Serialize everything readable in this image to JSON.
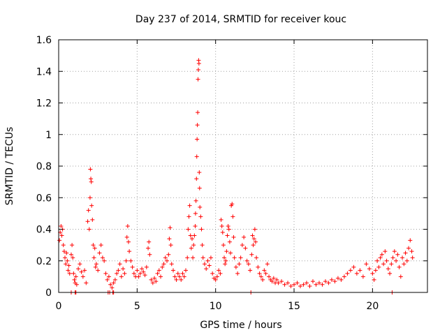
{
  "chart_data": {
    "type": "scatter",
    "title": "Day 237 of 2014, SRMTID for receiver kouc",
    "xlabel": "GPS time / hours",
    "ylabel": "SRMTID / TECUs",
    "xlim": [
      0,
      23.5
    ],
    "ylim": [
      0,
      1.6
    ],
    "x_ticks": [
      0,
      5,
      10,
      15,
      20
    ],
    "x_tick_labels": [
      "0",
      "5",
      "10",
      "15",
      "20"
    ],
    "y_ticks": [
      0,
      0.2,
      0.4,
      0.6,
      0.8,
      1.0,
      1.2,
      1.4,
      1.6
    ],
    "y_tick_labels": [
      "0",
      "0.2",
      "0.4",
      "0.6",
      "0.8",
      "1",
      "1.2",
      "1.4",
      "1.6"
    ],
    "grid": true,
    "marker": "+",
    "colors": {
      "series": "#ff0000",
      "grid": "#a0a0a0",
      "axis": "#000000"
    },
    "series": [
      {
        "name": "SRMTID",
        "points": [
          [
            0.05,
            0.33
          ],
          [
            0.1,
            0.38
          ],
          [
            0.15,
            0.42
          ],
          [
            0.2,
            0.36
          ],
          [
            0.25,
            0.4
          ],
          [
            0.3,
            0.3
          ],
          [
            0.35,
            0.26
          ],
          [
            0.4,
            0.22
          ],
          [
            0.45,
            0.18
          ],
          [
            0.5,
            0.25
          ],
          [
            0.55,
            0.2
          ],
          [
            0.6,
            0.14
          ],
          [
            0.65,
            0.17
          ],
          [
            0.7,
            0.12
          ],
          [
            0.8,
            0.24
          ],
          [
            0.85,
            0.3
          ],
          [
            0.9,
            0.22
          ],
          [
            0.95,
            0.12
          ],
          [
            1.0,
            0.08
          ],
          [
            1.05,
            0.06
          ],
          [
            1.1,
            0.1
          ],
          [
            1.15,
            0.05
          ],
          [
            1.25,
            0.15
          ],
          [
            1.35,
            0.18
          ],
          [
            1.45,
            0.13
          ],
          [
            1.55,
            0.1
          ],
          [
            1.65,
            0.14
          ],
          [
            1.75,
            0.06
          ],
          [
            1.85,
            0.45
          ],
          [
            1.9,
            0.52
          ],
          [
            1.95,
            0.4
          ],
          [
            2.0,
            0.6
          ],
          [
            2.02,
            0.78
          ],
          [
            2.05,
            0.72
          ],
          [
            2.08,
            0.7
          ],
          [
            2.1,
            0.55
          ],
          [
            2.15,
            0.46
          ],
          [
            2.2,
            0.3
          ],
          [
            2.25,
            0.22
          ],
          [
            2.3,
            0.28
          ],
          [
            2.35,
            0.16
          ],
          [
            2.4,
            0.18
          ],
          [
            2.5,
            0.14
          ],
          [
            2.6,
            0.25
          ],
          [
            2.7,
            0.3
          ],
          [
            2.8,
            0.22
          ],
          [
            2.9,
            0.2
          ],
          [
            3.0,
            0.12
          ],
          [
            3.1,
            0.08
          ],
          [
            3.2,
            0.1
          ],
          [
            3.3,
            0.05
          ],
          [
            3.4,
            0.03
          ],
          [
            3.5,
            0.06
          ],
          [
            3.6,
            0.08
          ],
          [
            3.7,
            0.12
          ],
          [
            3.8,
            0.14
          ],
          [
            3.9,
            0.18
          ],
          [
            4.0,
            0.1
          ],
          [
            4.1,
            0.15
          ],
          [
            4.2,
            0.12
          ],
          [
            4.3,
            0.2
          ],
          [
            4.35,
            0.35
          ],
          [
            4.4,
            0.42
          ],
          [
            4.45,
            0.32
          ],
          [
            4.5,
            0.26
          ],
          [
            4.6,
            0.2
          ],
          [
            4.7,
            0.16
          ],
          [
            4.8,
            0.12
          ],
          [
            4.9,
            0.1
          ],
          [
            5.0,
            0.14
          ],
          [
            5.1,
            0.1
          ],
          [
            5.2,
            0.12
          ],
          [
            5.3,
            0.15
          ],
          [
            5.4,
            0.13
          ],
          [
            5.5,
            0.11
          ],
          [
            5.6,
            0.16
          ],
          [
            5.7,
            0.28
          ],
          [
            5.75,
            0.32
          ],
          [
            5.8,
            0.24
          ],
          [
            5.9,
            0.08
          ],
          [
            6.0,
            0.06
          ],
          [
            6.1,
            0.09
          ],
          [
            6.2,
            0.07
          ],
          [
            6.3,
            0.12
          ],
          [
            6.4,
            0.14
          ],
          [
            6.5,
            0.1
          ],
          [
            6.6,
            0.16
          ],
          [
            6.7,
            0.18
          ],
          [
            6.8,
            0.22
          ],
          [
            6.9,
            0.2
          ],
          [
            7.0,
            0.24
          ],
          [
            7.05,
            0.34
          ],
          [
            7.1,
            0.41
          ],
          [
            7.15,
            0.3
          ],
          [
            7.2,
            0.18
          ],
          [
            7.3,
            0.14
          ],
          [
            7.4,
            0.1
          ],
          [
            7.5,
            0.08
          ],
          [
            7.6,
            0.12
          ],
          [
            7.7,
            0.1
          ],
          [
            7.8,
            0.08
          ],
          [
            7.9,
            0.12
          ],
          [
            8.0,
            0.1
          ],
          [
            8.1,
            0.14
          ],
          [
            8.2,
            0.22
          ],
          [
            8.25,
            0.4
          ],
          [
            8.3,
            0.48
          ],
          [
            8.35,
            0.55
          ],
          [
            8.4,
            0.36
          ],
          [
            8.45,
            0.28
          ],
          [
            8.5,
            0.34
          ],
          [
            8.55,
            0.22
          ],
          [
            8.6,
            0.3
          ],
          [
            8.65,
            0.36
          ],
          [
            8.7,
            0.42
          ],
          [
            8.72,
            0.5
          ],
          [
            8.75,
            0.58
          ],
          [
            8.78,
            0.72
          ],
          [
            8.8,
            0.86
          ],
          [
            8.82,
            0.97
          ],
          [
            8.84,
            1.06
          ],
          [
            8.86,
            1.14
          ],
          [
            8.88,
            1.35
          ],
          [
            8.9,
            1.41
          ],
          [
            8.92,
            1.47
          ],
          [
            8.94,
            1.45
          ],
          [
            8.96,
            0.76
          ],
          [
            8.98,
            0.66
          ],
          [
            9.0,
            0.54
          ],
          [
            9.05,
            0.48
          ],
          [
            9.1,
            0.4
          ],
          [
            9.15,
            0.3
          ],
          [
            9.2,
            0.22
          ],
          [
            9.3,
            0.18
          ],
          [
            9.4,
            0.15
          ],
          [
            9.5,
            0.2
          ],
          [
            9.6,
            0.17
          ],
          [
            9.7,
            0.22
          ],
          [
            9.8,
            0.12
          ],
          [
            9.9,
            0.09
          ],
          [
            10.0,
            0.08
          ],
          [
            10.1,
            0.1
          ],
          [
            10.2,
            0.14
          ],
          [
            10.3,
            0.12
          ],
          [
            10.35,
            0.46
          ],
          [
            10.4,
            0.42
          ],
          [
            10.45,
            0.38
          ],
          [
            10.5,
            0.3
          ],
          [
            10.55,
            0.22
          ],
          [
            10.6,
            0.18
          ],
          [
            10.65,
            0.2
          ],
          [
            10.7,
            0.26
          ],
          [
            10.75,
            0.36
          ],
          [
            10.8,
            0.42
          ],
          [
            10.85,
            0.4
          ],
          [
            10.9,
            0.32
          ],
          [
            10.95,
            0.25
          ],
          [
            11.0,
            0.55
          ],
          [
            11.05,
            0.56
          ],
          [
            11.1,
            0.48
          ],
          [
            11.15,
            0.35
          ],
          [
            11.2,
            0.22
          ],
          [
            11.3,
            0.16
          ],
          [
            11.4,
            0.12
          ],
          [
            11.5,
            0.18
          ],
          [
            11.6,
            0.22
          ],
          [
            11.7,
            0.3
          ],
          [
            11.8,
            0.35
          ],
          [
            11.9,
            0.28
          ],
          [
            12.0,
            0.2
          ],
          [
            12.1,
            0.18
          ],
          [
            12.2,
            0.14
          ],
          [
            12.3,
            0.24
          ],
          [
            12.35,
            0.36
          ],
          [
            12.4,
            0.3
          ],
          [
            12.45,
            0.34
          ],
          [
            12.5,
            0.4
          ],
          [
            12.55,
            0.32
          ],
          [
            12.6,
            0.22
          ],
          [
            12.7,
            0.16
          ],
          [
            12.8,
            0.12
          ],
          [
            12.9,
            0.1
          ],
          [
            13.0,
            0.08
          ],
          [
            13.1,
            0.14
          ],
          [
            13.2,
            0.12
          ],
          [
            13.3,
            0.18
          ],
          [
            13.4,
            0.1
          ],
          [
            13.5,
            0.08
          ],
          [
            13.6,
            0.07
          ],
          [
            13.7,
            0.09
          ],
          [
            13.8,
            0.06
          ],
          [
            13.9,
            0.08
          ],
          [
            14.0,
            0.06
          ],
          [
            14.2,
            0.07
          ],
          [
            14.4,
            0.05
          ],
          [
            14.6,
            0.06
          ],
          [
            14.8,
            0.04
          ],
          [
            15.0,
            0.05
          ],
          [
            15.2,
            0.06
          ],
          [
            15.4,
            0.04
          ],
          [
            15.6,
            0.05
          ],
          [
            15.8,
            0.06
          ],
          [
            16.0,
            0.04
          ],
          [
            16.2,
            0.07
          ],
          [
            16.4,
            0.05
          ],
          [
            16.6,
            0.06
          ],
          [
            16.8,
            0.05
          ],
          [
            17.0,
            0.07
          ],
          [
            17.2,
            0.06
          ],
          [
            17.4,
            0.08
          ],
          [
            17.6,
            0.07
          ],
          [
            17.8,
            0.09
          ],
          [
            18.0,
            0.08
          ],
          [
            18.2,
            0.1
          ],
          [
            18.4,
            0.12
          ],
          [
            18.6,
            0.14
          ],
          [
            18.8,
            0.16
          ],
          [
            19.0,
            0.12
          ],
          [
            19.2,
            0.14
          ],
          [
            19.4,
            0.1
          ],
          [
            19.6,
            0.18
          ],
          [
            19.8,
            0.15
          ],
          [
            20.0,
            0.12
          ],
          [
            20.1,
            0.08
          ],
          [
            20.2,
            0.14
          ],
          [
            20.3,
            0.2
          ],
          [
            20.4,
            0.16
          ],
          [
            20.5,
            0.22
          ],
          [
            20.6,
            0.24
          ],
          [
            20.7,
            0.18
          ],
          [
            20.8,
            0.26
          ],
          [
            20.9,
            0.2
          ],
          [
            21.0,
            0.15
          ],
          [
            21.1,
            0.12
          ],
          [
            21.2,
            0.18
          ],
          [
            21.3,
            0.22
          ],
          [
            21.4,
            0.26
          ],
          [
            21.5,
            0.2
          ],
          [
            21.6,
            0.24
          ],
          [
            21.7,
            0.16
          ],
          [
            21.8,
            0.1
          ],
          [
            21.9,
            0.22
          ],
          [
            22.0,
            0.18
          ],
          [
            22.1,
            0.25
          ],
          [
            22.2,
            0.2
          ],
          [
            22.3,
            0.28
          ],
          [
            22.4,
            0.33
          ],
          [
            22.5,
            0.26
          ],
          [
            22.55,
            0.22
          ],
          [
            0.8,
            0.0
          ],
          [
            1.05,
            0.0
          ],
          [
            1.1,
            0.0
          ],
          [
            3.15,
            0.0
          ],
          [
            3.25,
            0.0
          ],
          [
            3.45,
            0.0
          ],
          [
            3.5,
            0.0
          ],
          [
            12.25,
            0.0
          ],
          [
            21.25,
            0.0
          ]
        ]
      }
    ]
  }
}
